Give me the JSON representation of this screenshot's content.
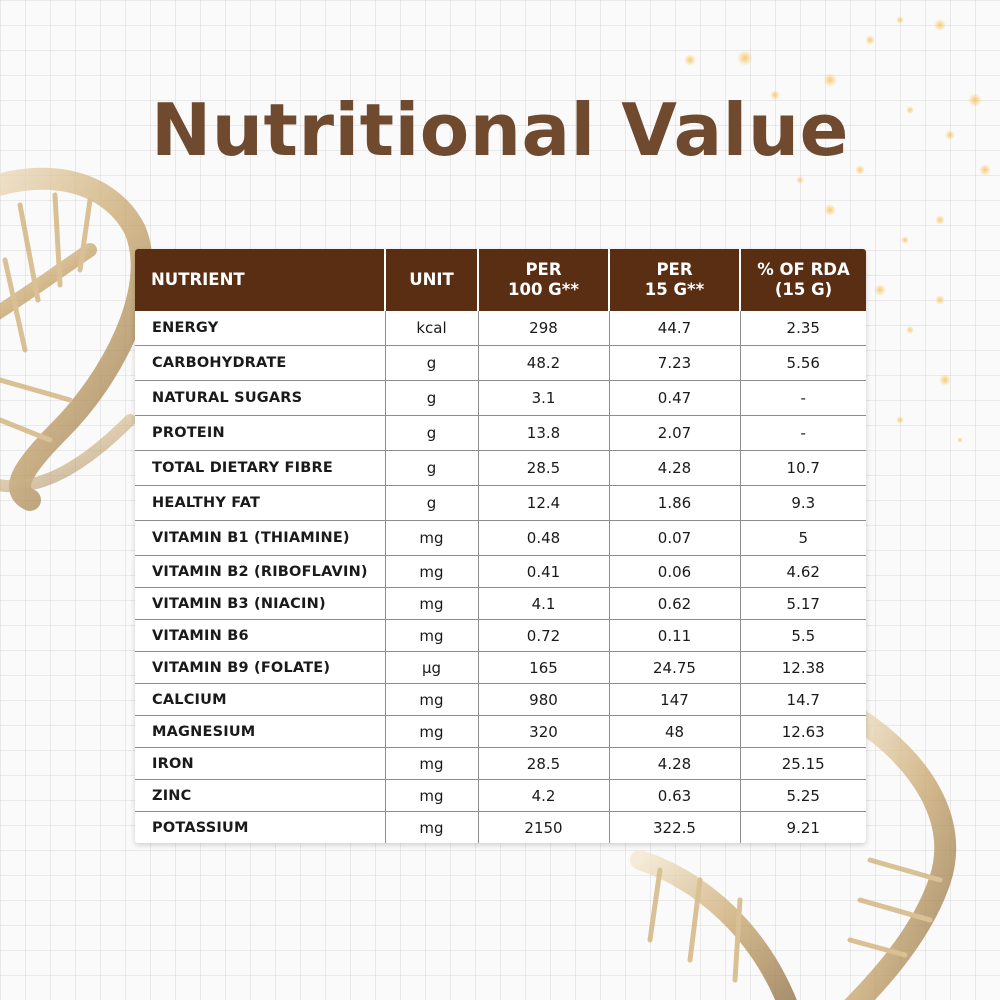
{
  "title": "Nutritional Value",
  "colors": {
    "title": "#6f4a2f",
    "header_bg": "#5a2e13",
    "header_text": "#ffffff",
    "background": "#fbfafa",
    "dna_gold": "#c9a66b"
  },
  "table": {
    "headers": {
      "nutrient": "NUTRIENT",
      "unit": "UNIT",
      "per100_line1": "PER",
      "per100_line2": "100 G**",
      "per15_line1": "PER",
      "per15_line2": "15 G**",
      "rda_line1": "% OF RDA",
      "rda_line2": "(15 G)"
    },
    "rows": [
      {
        "nutrient": "ENERGY",
        "unit": "kcal",
        "per100": "298",
        "per15": "44.7",
        "rda": "2.35"
      },
      {
        "nutrient": "CARBOHYDRATE",
        "unit": "g",
        "per100": "48.2",
        "per15": "7.23",
        "rda": "5.56"
      },
      {
        "nutrient": "NATURAL SUGARS",
        "unit": "g",
        "per100": "3.1",
        "per15": "0.47",
        "rda": "-"
      },
      {
        "nutrient": "PROTEIN",
        "unit": "g",
        "per100": "13.8",
        "per15": "2.07",
        "rda": "-"
      },
      {
        "nutrient": "TOTAL DIETARY FIBRE",
        "unit": "g",
        "per100": "28.5",
        "per15": "4.28",
        "rda": "10.7"
      },
      {
        "nutrient": "HEALTHY FAT",
        "unit": "g",
        "per100": "12.4",
        "per15": "1.86",
        "rda": "9.3"
      },
      {
        "nutrient": "VITAMIN B1 (THIAMINE)",
        "unit": "mg",
        "per100": "0.48",
        "per15": "0.07",
        "rda": "5"
      },
      {
        "nutrient": "VITAMIN B2 (RIBOFLAVIN)",
        "unit": "mg",
        "per100": "0.41",
        "per15": "0.06",
        "rda": "4.62"
      },
      {
        "nutrient": "VITAMIN B3 (NIACIN)",
        "unit": "mg",
        "per100": "4.1",
        "per15": "0.62",
        "rda": "5.17"
      },
      {
        "nutrient": "VITAMIN B6",
        "unit": "mg",
        "per100": "0.72",
        "per15": "0.11",
        "rda": "5.5"
      },
      {
        "nutrient": "VITAMIN B9 (FOLATE)",
        "unit": "µg",
        "per100": "165",
        "per15": "24.75",
        "rda": "12.38"
      },
      {
        "nutrient": "CALCIUM",
        "unit": "mg",
        "per100": "980",
        "per15": "147",
        "rda": "14.7"
      },
      {
        "nutrient": "MAGNESIUM",
        "unit": "mg",
        "per100": "320",
        "per15": "48",
        "rda": "12.63"
      },
      {
        "nutrient": "IRON",
        "unit": "mg",
        "per100": "28.5",
        "per15": "4.28",
        "rda": "25.15"
      },
      {
        "nutrient": "ZINC",
        "unit": "mg",
        "per100": "4.2",
        "per15": "0.63",
        "rda": "5.25"
      },
      {
        "nutrient": "POTASSIUM",
        "unit": "mg",
        "per100": "2150",
        "per15": "322.5",
        "rda": "9.21"
      }
    ]
  }
}
